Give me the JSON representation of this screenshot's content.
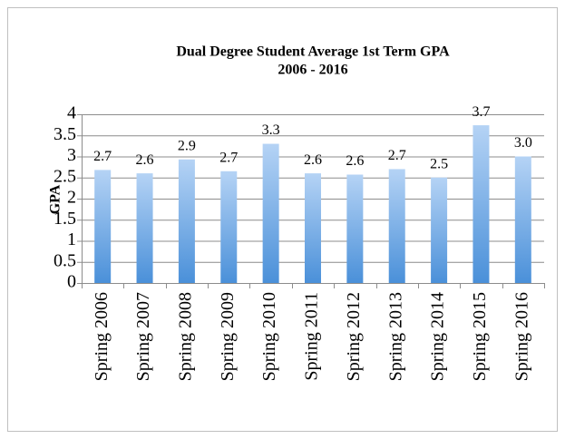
{
  "chart_data": {
    "type": "bar",
    "title": [
      "Dual Degree Student Average 1st Term GPA",
      "2006 - 2016"
    ],
    "y_label": "GPA",
    "categories": [
      "Spring 2006",
      "Spring 2007",
      "Spring 2008",
      "Spring 2009",
      "Spring 2010",
      "Spring 2011",
      "Spring 2012",
      "Spring 2013",
      "Spring 2014",
      "Spring 2015",
      "Spring 2016"
    ],
    "values": [
      2.68,
      2.6,
      2.93,
      2.65,
      3.3,
      2.6,
      2.57,
      2.7,
      2.5,
      3.74,
      3.0
    ],
    "value_labels": [
      "2.7",
      "2.6",
      "2.9",
      "2.7",
      "3.3",
      "2.6",
      "2.6",
      "2.7",
      "2.5",
      "3.7",
      "3.0"
    ],
    "color": "#5b9bd5",
    "ylim": [
      0,
      4
    ],
    "yticks": [
      0,
      0.5,
      1,
      1.5,
      2,
      2.5,
      3,
      3.5,
      4
    ],
    "grid": true
  }
}
